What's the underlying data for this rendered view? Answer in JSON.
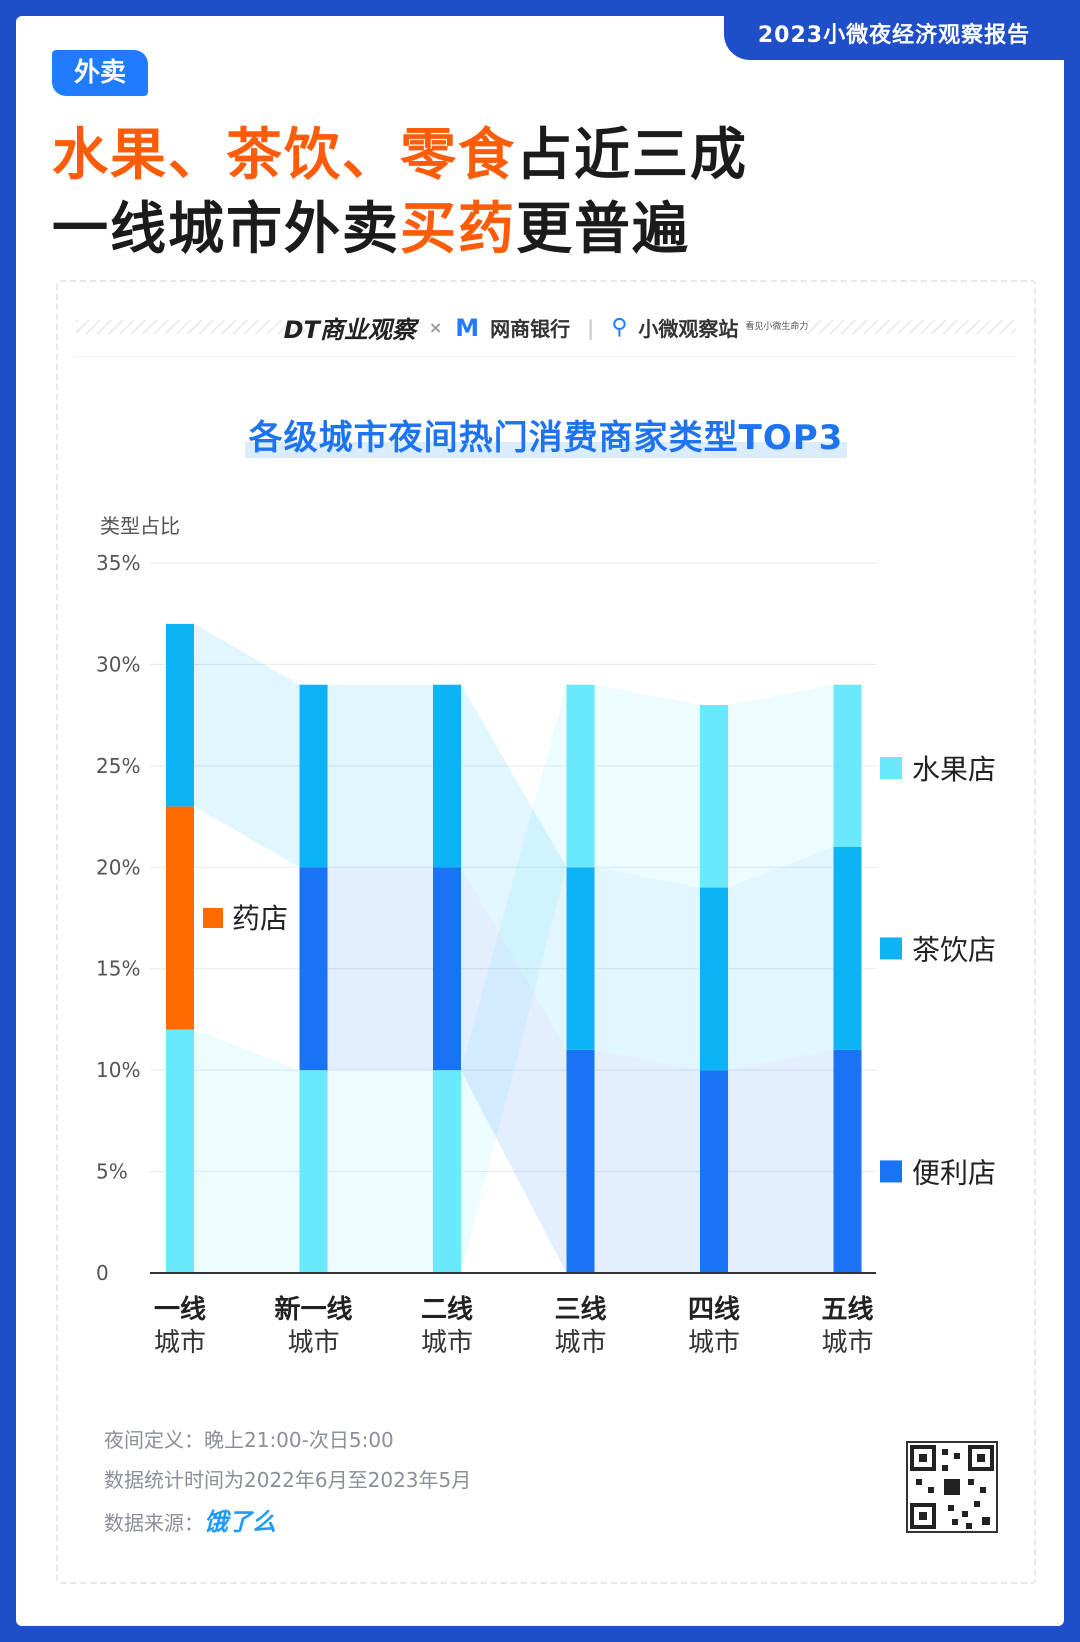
{
  "header": {
    "report_tag": "2023小微夜经济观察报告",
    "badge": "外卖",
    "headline_line1": [
      {
        "text": "水果、茶饮、零食",
        "highlight": true
      },
      {
        "text": "占近三成",
        "highlight": false
      }
    ],
    "headline_line2": [
      {
        "text": "一线城市外卖",
        "highlight": false
      },
      {
        "text": "买药",
        "highlight": true
      },
      {
        "text": "更普遍",
        "highlight": false
      }
    ]
  },
  "logos": {
    "dt": "DT商业观察",
    "times": "×",
    "wangshang": "网商银行",
    "xiaowei": "小微观察站",
    "xiaowei_sub": "看见小微生命力"
  },
  "colors": {
    "brand_blue": "#1f4fc8",
    "accent_orange": "#ff5c0a",
    "fruit": "#6be8fb",
    "tea": "#0cb4f5",
    "convenience": "#1a73f5",
    "pharmacy": "#ff6a00"
  },
  "chart_data": {
    "type": "bar",
    "stacked": true,
    "title": "各级城市夜间热门消费商家类型TOP3",
    "ylabel": "类型占比",
    "ylim": [
      0,
      35
    ],
    "yticks": [
      "0",
      "5%",
      "10%",
      "15%",
      "20%",
      "25%",
      "30%",
      "35%"
    ],
    "categories": [
      {
        "line1": "一线",
        "line2": "城市"
      },
      {
        "line1": "新一线",
        "line2": "城市"
      },
      {
        "line1": "二线",
        "line2": "城市"
      },
      {
        "line1": "三线",
        "line2": "城市"
      },
      {
        "line1": "四线",
        "line2": "城市"
      },
      {
        "line1": "五线",
        "line2": "城市"
      }
    ],
    "stacks": [
      [
        {
          "type": "fruit",
          "value": 12
        },
        {
          "type": "pharmacy",
          "value": 11
        },
        {
          "type": "tea",
          "value": 9
        }
      ],
      [
        {
          "type": "fruit",
          "value": 10
        },
        {
          "type": "convenience",
          "value": 10
        },
        {
          "type": "tea",
          "value": 9
        }
      ],
      [
        {
          "type": "fruit",
          "value": 10
        },
        {
          "type": "convenience",
          "value": 10
        },
        {
          "type": "tea",
          "value": 9
        }
      ],
      [
        {
          "type": "convenience",
          "value": 11
        },
        {
          "type": "tea",
          "value": 9
        },
        {
          "type": "fruit",
          "value": 9
        }
      ],
      [
        {
          "type": "convenience",
          "value": 10
        },
        {
          "type": "tea",
          "value": 9
        },
        {
          "type": "fruit",
          "value": 9
        }
      ],
      [
        {
          "type": "convenience",
          "value": 11
        },
        {
          "type": "tea",
          "value": 10
        },
        {
          "type": "fruit",
          "value": 8
        }
      ]
    ],
    "legend": [
      {
        "type": "fruit",
        "label": "水果店"
      },
      {
        "type": "tea",
        "label": "茶饮店"
      },
      {
        "type": "convenience",
        "label": "便利店"
      }
    ],
    "inline_label": {
      "type": "pharmacy",
      "label": "药店"
    }
  },
  "footer": {
    "night_def": "夜间定义：晚上21:00-次日5:00",
    "period": "数据统计时间为2022年6月至2023年5月",
    "source_label": "数据来源：",
    "source_brand": "饿了么"
  }
}
